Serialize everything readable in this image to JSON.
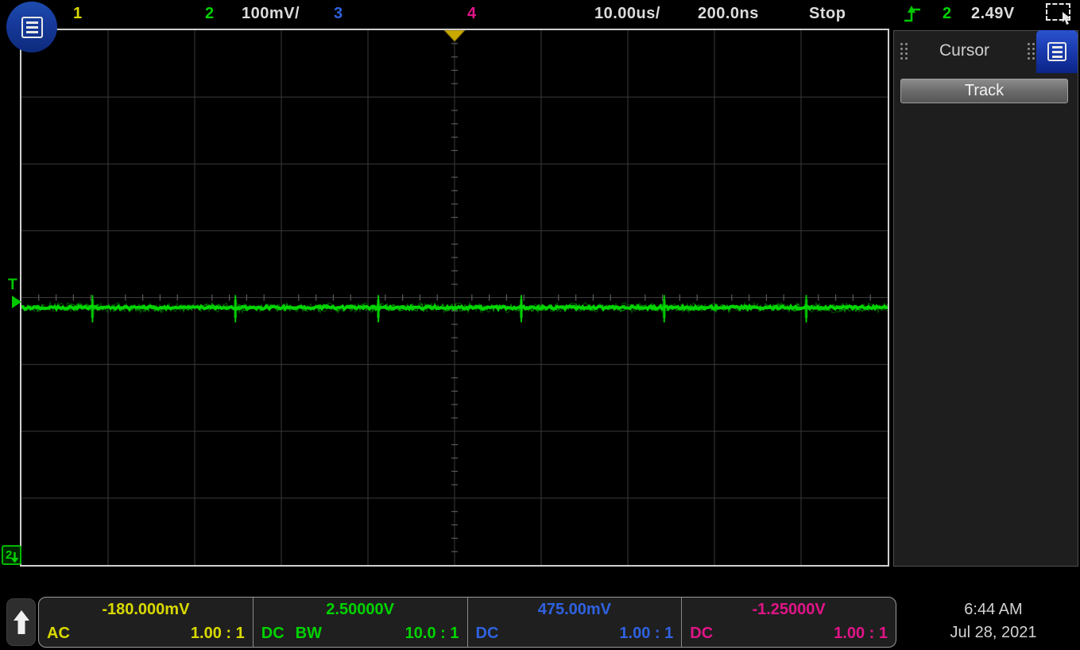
{
  "top_bar": {
    "ch1_label": "1",
    "ch2_label": "2",
    "ch2_scale": "100mV/",
    "ch3_label": "3",
    "ch4_label": "4",
    "timebase": "10.00us/",
    "delay": "200.0ns",
    "run_state": "Stop",
    "trigger_source": "2",
    "trigger_level": "2.49V"
  },
  "display": {
    "trigger_level_label": "T",
    "ground_marker_label": "2"
  },
  "sidebar": {
    "title": "Cursor",
    "track_button_label": "Track"
  },
  "bottom_bar": {
    "channels": [
      {
        "id": "1",
        "color": "#d9d900",
        "value": "-180.000mV",
        "coupling": "AC",
        "bw": "",
        "probe": "1.00 : 1"
      },
      {
        "id": "2",
        "color": "#00d300",
        "value": "2.50000V",
        "coupling": "DC",
        "bw": "BW",
        "probe": "10.0 : 1"
      },
      {
        "id": "3",
        "color": "#2f62e0",
        "value": "475.00mV",
        "coupling": "DC",
        "bw": "",
        "probe": "1.00 : 1"
      },
      {
        "id": "4",
        "color": "#e01487",
        "value": "-1.25000V",
        "coupling": "DC",
        "bw": "",
        "probe": "1.00 : 1"
      }
    ],
    "time": "6:44 AM",
    "date": "Jul 28, 2021"
  },
  "chart_data": {
    "type": "line",
    "title": "Oscilloscope channel 2 trace",
    "x_units": "us",
    "y_units": "V",
    "x_range": [
      -50,
      50
    ],
    "timebase_per_div_us": 10.0,
    "delay_ns": 200.0,
    "volts_per_div": 0.1,
    "center_v": 2.5,
    "baseline_v": 2.485,
    "noise_pp_v": 0.012,
    "spike_times_us": [
      -41.8,
      -25.3,
      -8.8,
      7.7,
      24.2,
      40.6
    ],
    "spike_amp_v": 0.022,
    "trigger_level_v": 2.49,
    "trigger_position_us": 0,
    "run_state": "Stop",
    "grid": {
      "h_divs": 10,
      "v_divs": 8,
      "minor_per_div": 5,
      "on": true
    },
    "series": [
      {
        "name": "CH2",
        "color": "#00d800"
      }
    ]
  }
}
